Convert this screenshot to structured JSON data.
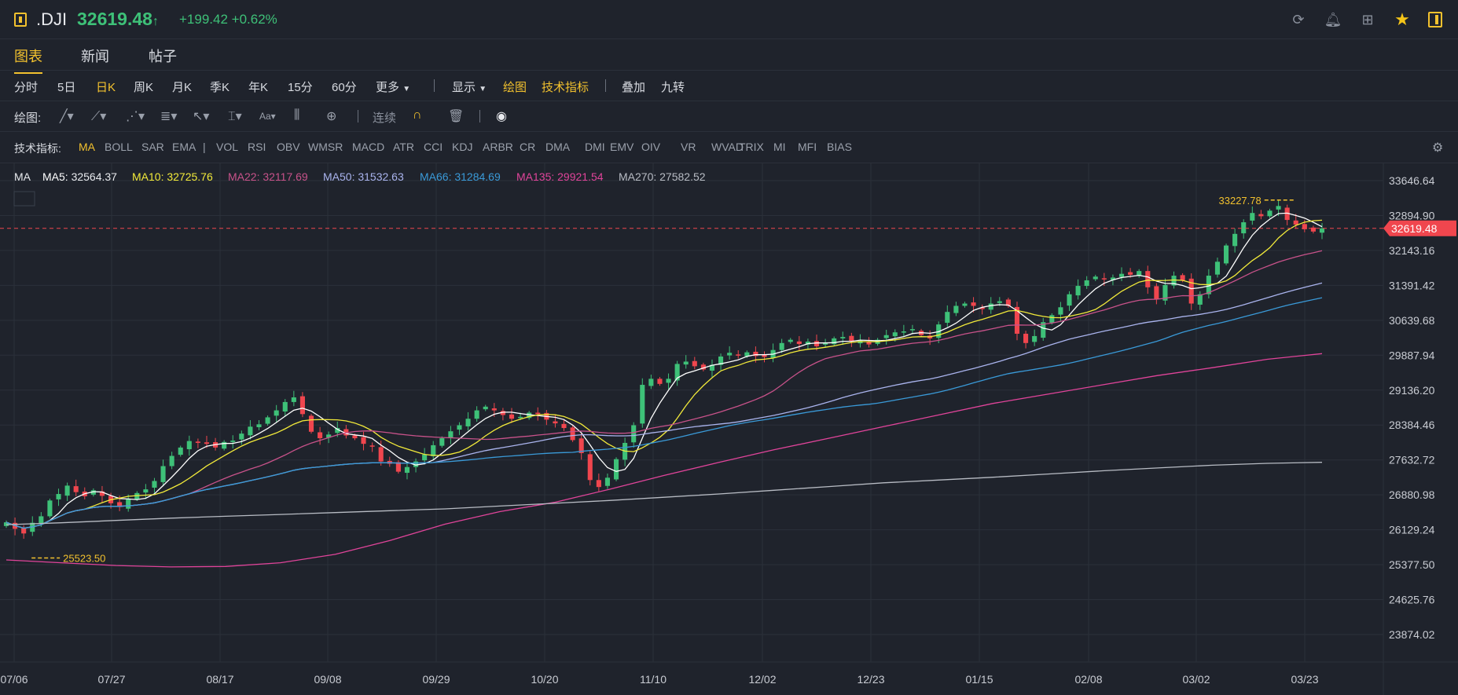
{
  "header": {
    "symbol": ".DJI",
    "price": "32619.48",
    "arrow": "↑",
    "change": "+199.42 +0.62%",
    "up_color": "#3ec178",
    "down_color": "#f0464e",
    "accent": "#f2c12e"
  },
  "tabs": [
    "图表",
    "新闻",
    "帖子"
  ],
  "periods": [
    "分时",
    "5日",
    "日K",
    "周K",
    "月K",
    "季K",
    "年K",
    "15分",
    "60分",
    "更多"
  ],
  "period_active": "日K",
  "toolbar_right": {
    "display": "显示",
    "draw": "绘图",
    "indicators": "技术指标",
    "overlay": "叠加",
    "nine": "九转"
  },
  "draw_bar": {
    "label": "绘图:",
    "continuous": "连续"
  },
  "indicator_bar": {
    "label": "技术指标:",
    "main": [
      "MA",
      "BOLL",
      "SAR",
      "EMA"
    ],
    "sub": [
      "VOL",
      "RSI",
      "OBV",
      "WMSR",
      "MACD",
      "ATR",
      "CCI",
      "KDJ",
      "ARBR",
      "CR",
      "DMA",
      "DMI",
      "EMV",
      "OIV",
      "VR",
      "WVAD",
      "TRIX",
      "MI",
      "MFI",
      "BIAS"
    ]
  },
  "ma_legend": [
    {
      "label": "MA",
      "value": "",
      "color": "#e8eaee"
    },
    {
      "label": "MA5:",
      "value": "32564.37",
      "color": "#ffffff"
    },
    {
      "label": "MA10:",
      "value": "32725.76",
      "color": "#f2ea3a"
    },
    {
      "label": "MA22:",
      "value": "32117.69",
      "color": "#c8528a"
    },
    {
      "label": "MA50:",
      "value": "31532.63",
      "color": "#aab4ee"
    },
    {
      "label": "MA66:",
      "value": "31284.69",
      "color": "#3a9ad8"
    },
    {
      "label": "MA135:",
      "value": "29921.54",
      "color": "#e0449a"
    },
    {
      "label": "MA270:",
      "value": "27582.52",
      "color": "#b8bcc4"
    }
  ],
  "chart_data": {
    "type": "candlestick",
    "y_ticks": [
      "33646.64",
      "32894.90",
      "32143.16",
      "31391.42",
      "30639.68",
      "29887.94",
      "29136.20",
      "28384.46",
      "27632.72",
      "26880.98",
      "26129.24",
      "25377.50",
      "24625.76",
      "23874.02"
    ],
    "x_ticks": [
      "07/06",
      "07/27",
      "08/17",
      "09/08",
      "09/29",
      "10/20",
      "11/10",
      "12/02",
      "12/23",
      "01/15",
      "02/08",
      "03/02",
      "03/23"
    ],
    "ylim": [
      23874.02,
      33646.64
    ],
    "current_price": 32619.48,
    "high_marker": "33227.78",
    "low_marker": "25523.50",
    "closes": [
      26290,
      26150,
      26050,
      26280,
      26420,
      26760,
      26900,
      27080,
      26940,
      26850,
      26980,
      26860,
      26700,
      26620,
      26800,
      26920,
      27000,
      27180,
      27500,
      27720,
      27900,
      28040,
      28000,
      27980,
      27900,
      28020,
      28050,
      28200,
      28350,
      28400,
      28550,
      28700,
      28880,
      28980,
      28620,
      28240,
      28100,
      28180,
      28320,
      28160,
      28100,
      27980,
      27920,
      27600,
      27550,
      27380,
      27480,
      27600,
      27750,
      27950,
      28100,
      28250,
      28380,
      28520,
      28700,
      28780,
      28700,
      28600,
      28520,
      28560,
      28650,
      28620,
      28500,
      28420,
      28320,
      28060,
      27780,
      27200,
      27050,
      27250,
      27650,
      28000,
      28380,
      29250,
      29380,
      29270,
      29380,
      29700,
      29750,
      29650,
      29580,
      29680,
      29860,
      29940,
      29880,
      29950,
      29870,
      29850,
      30000,
      30150,
      30220,
      30130,
      30180,
      30080,
      30150,
      30250,
      30280,
      30180,
      30200,
      30120,
      30220,
      30320,
      30380,
      30400,
      30450,
      30320,
      30250,
      30550,
      30820,
      30950,
      31000,
      30950,
      30880,
      31000,
      31050,
      30950,
      30350,
      30150,
      30300,
      30600,
      30750,
      30920,
      31200,
      31380,
      31500,
      31580,
      31520,
      31560,
      31640,
      31620,
      31700,
      31350,
      31100,
      31400,
      31600,
      31500,
      31000,
      31200,
      31600,
      31900,
      32250,
      32500,
      32750,
      32950,
      32880,
      33000,
      33100,
      32800,
      32700,
      32600,
      32550,
      32619
    ]
  }
}
